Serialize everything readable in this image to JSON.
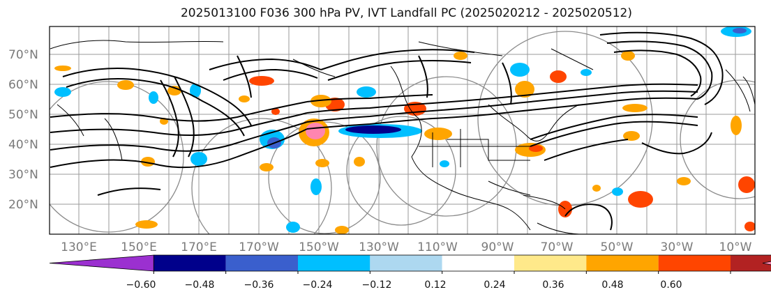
{
  "title": "2025013100 F036 300 hPa PV, IVT Landfall PC (2025020212 - 2025020512)",
  "latitude_labels": [
    "70°N",
    "60°N",
    "50°N",
    "40°N",
    "30°N",
    "20°N"
  ],
  "longitude_labels": [
    "130°E",
    "150°E",
    "170°E",
    "170°W",
    "150°W",
    "130°W",
    "110°W",
    "90°W",
    "70°W",
    "50°W",
    "30°W",
    "10°W"
  ],
  "colorbar": {
    "tick_labels": [
      "−0.60",
      "−0.48",
      "−0.36",
      "−0.24",
      "−0.12",
      "0.12",
      "0.24",
      "0.36",
      "0.48",
      "0.60"
    ],
    "colors": [
      "#9b30d0",
      "#00008b",
      "#3a5fcd",
      "#00bfff",
      "#add8f0",
      "#ffffff",
      "#ffe98a",
      "#ffa500",
      "#ff4500",
      "#b22222",
      "#ff85b0"
    ]
  },
  "map_colors": {
    "land_outline": "#000000",
    "contour": "#000000",
    "grid": "#9a9a9a",
    "circle": "#8a8a8a"
  }
}
